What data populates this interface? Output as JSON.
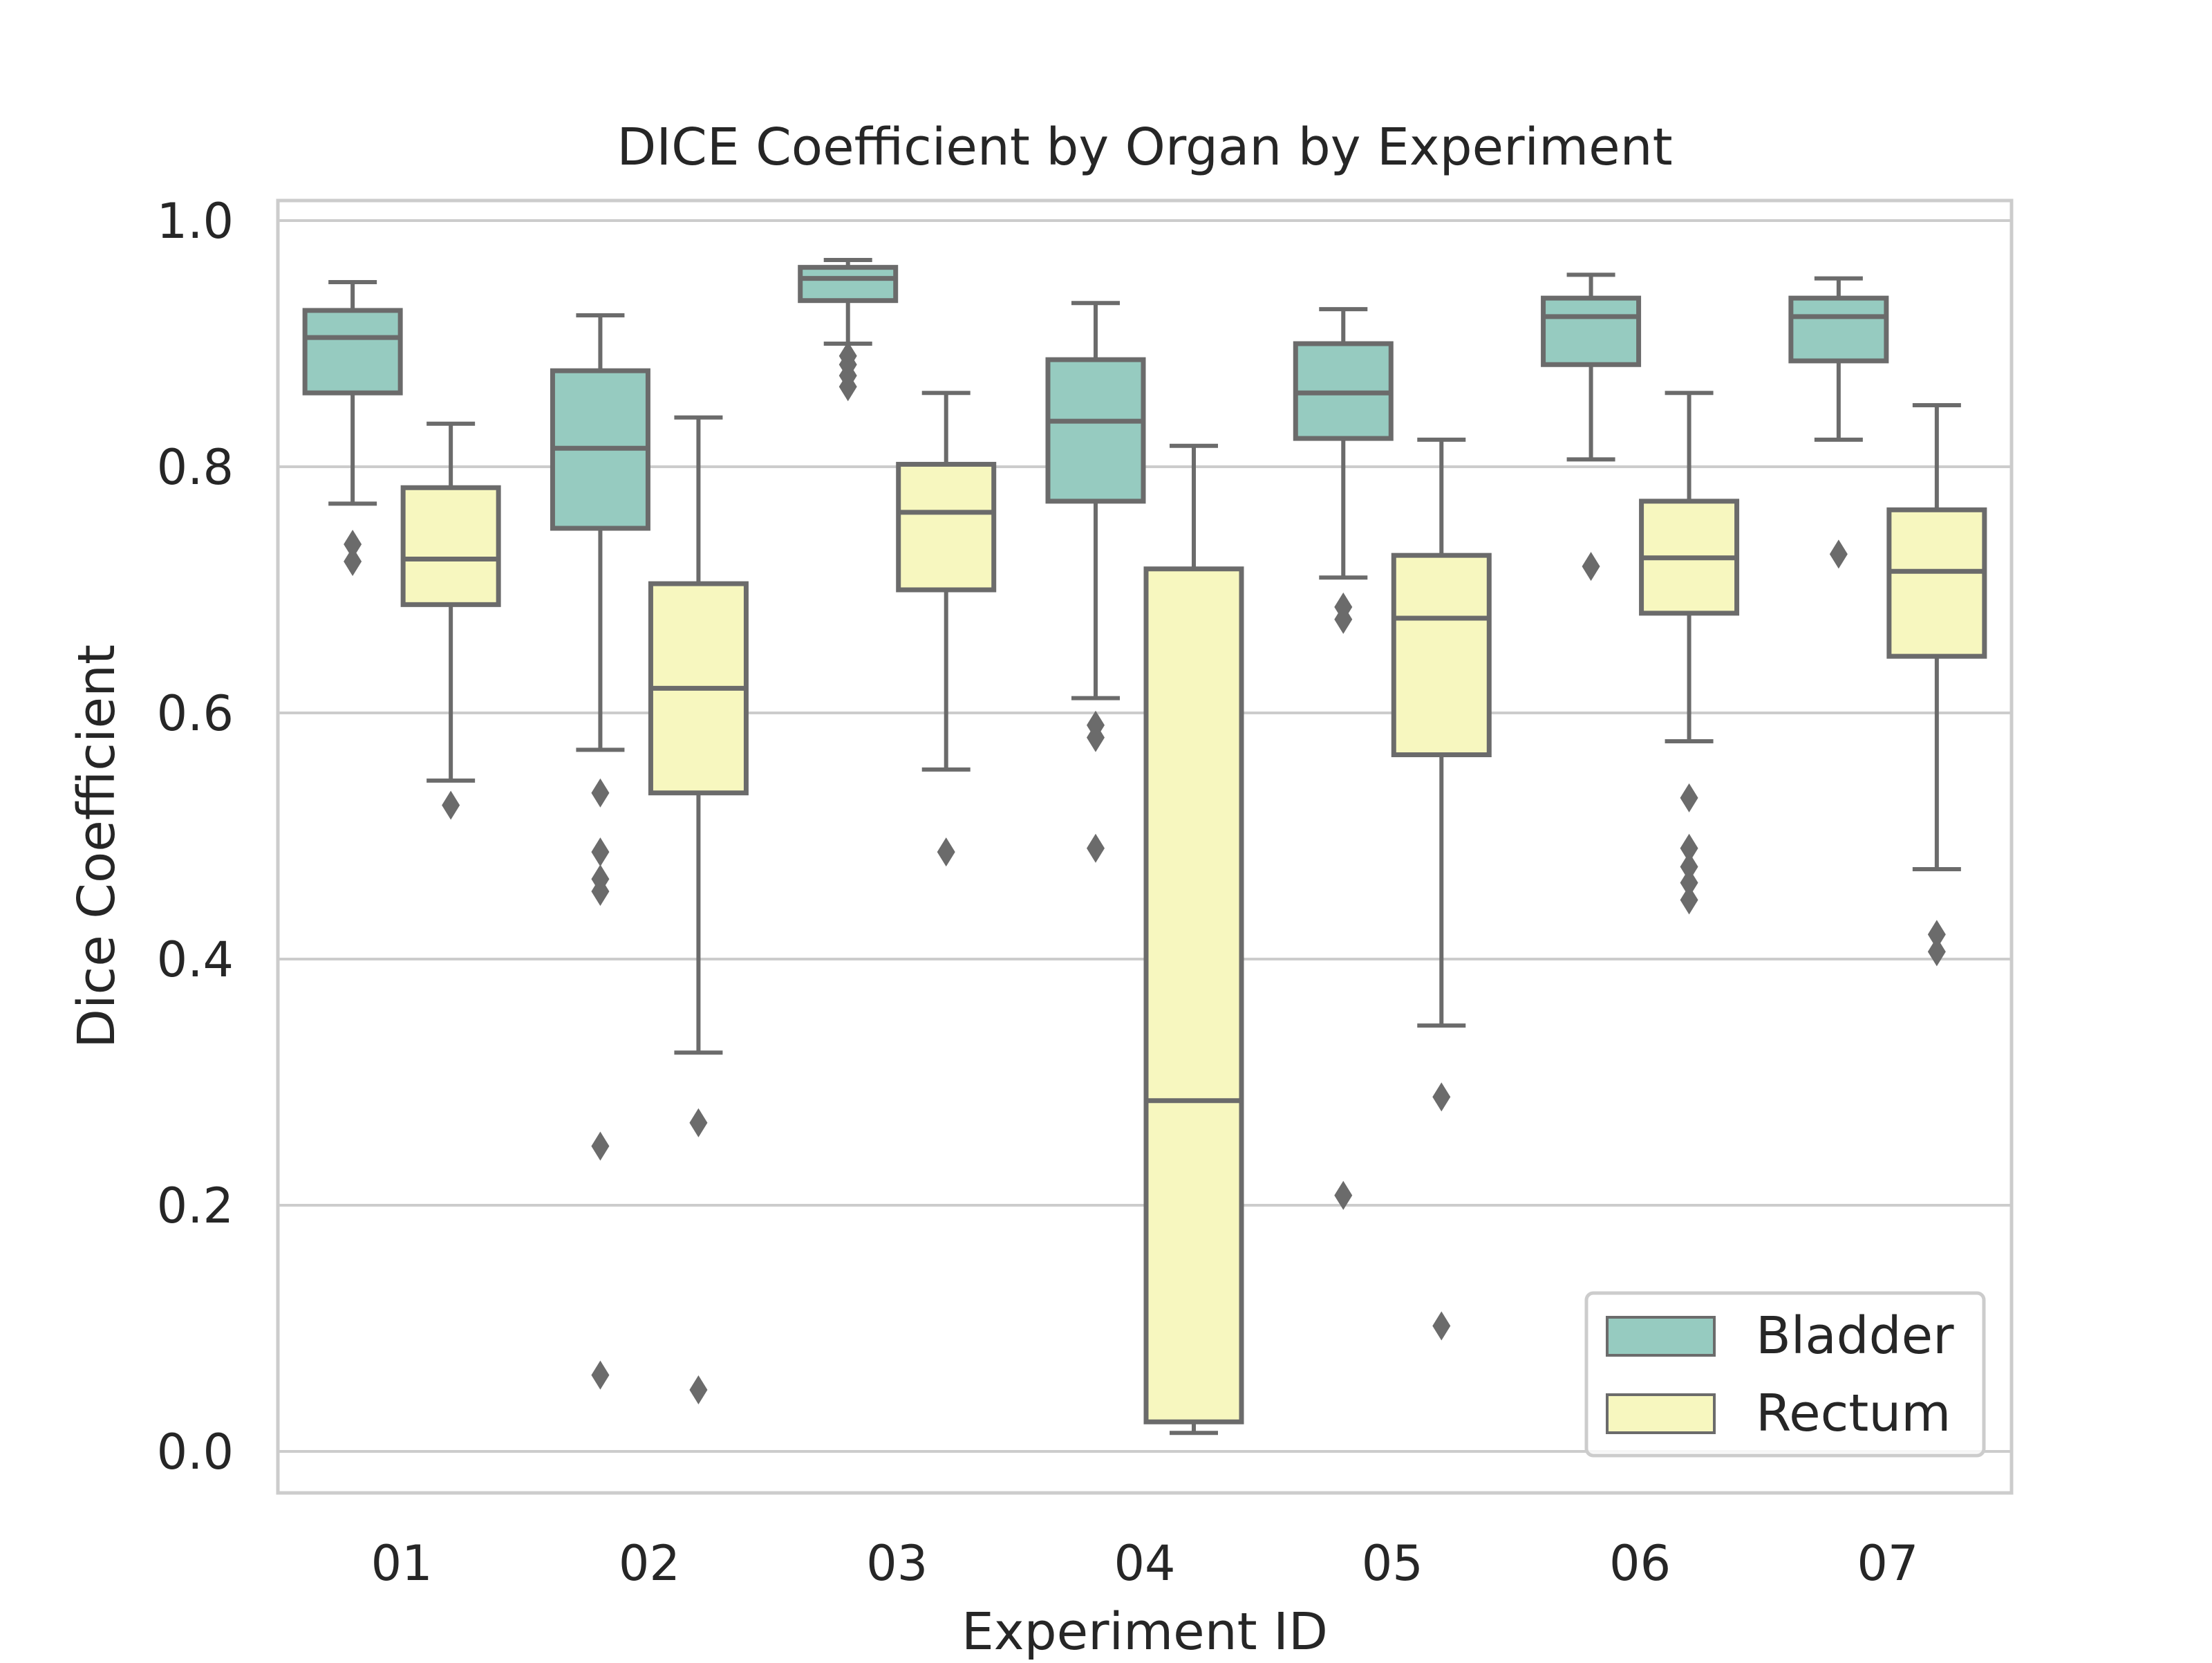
{
  "chart_data": {
    "type": "box",
    "title": "DICE Coefficient by Organ by Experiment",
    "xlabel": "Experiment ID",
    "ylabel": "Dice Coefficient",
    "ylim": [
      -0.035,
      1.02
    ],
    "yticks": [
      "0.0",
      "0.2",
      "0.4",
      "0.6",
      "0.8",
      "1.0"
    ],
    "categories": [
      "01",
      "02",
      "03",
      "04",
      "05",
      "06",
      "07"
    ],
    "grid": true,
    "legend_position": "lower-right",
    "series": [
      {
        "name": "Bladder",
        "color": "#96cbc0",
        "boxes": [
          {
            "whisker_low": 0.77,
            "q1": 0.86,
            "median": 0.905,
            "q3": 0.927,
            "whisker_high": 0.95,
            "outliers": [
              0.723,
              0.737
            ]
          },
          {
            "whisker_low": 0.57,
            "q1": 0.75,
            "median": 0.815,
            "q3": 0.878,
            "whisker_high": 0.923,
            "outliers": [
              0.535,
              0.487,
              0.465,
              0.455,
              0.248,
              0.062
            ]
          },
          {
            "whisker_low": 0.9,
            "q1": 0.935,
            "median": 0.953,
            "q3": 0.962,
            "whisker_high": 0.968,
            "outliers": [
              0.89,
              0.883,
              0.874,
              0.865
            ]
          },
          {
            "whisker_low": 0.612,
            "q1": 0.772,
            "median": 0.837,
            "q3": 0.887,
            "whisker_high": 0.933,
            "outliers": [
              0.59,
              0.58,
              0.49
            ]
          },
          {
            "whisker_low": 0.71,
            "q1": 0.823,
            "median": 0.86,
            "q3": 0.9,
            "whisker_high": 0.928,
            "outliers": [
              0.686,
              0.676,
              0.208
            ]
          },
          {
            "whisker_low": 0.806,
            "q1": 0.883,
            "median": 0.922,
            "q3": 0.937,
            "whisker_high": 0.956,
            "outliers": [
              0.719
            ]
          },
          {
            "whisker_low": 0.822,
            "q1": 0.886,
            "median": 0.922,
            "q3": 0.937,
            "whisker_high": 0.953,
            "outliers": [
              0.729
            ]
          }
        ]
      },
      {
        "name": "Rectum",
        "color": "#f7f7bf",
        "boxes": [
          {
            "whisker_low": 0.545,
            "q1": 0.688,
            "median": 0.725,
            "q3": 0.783,
            "whisker_high": 0.835,
            "outliers": [
              0.525
            ]
          },
          {
            "whisker_low": 0.324,
            "q1": 0.535,
            "median": 0.62,
            "q3": 0.705,
            "whisker_high": 0.84,
            "outliers": [
              0.267,
              0.05
            ]
          },
          {
            "whisker_low": 0.554,
            "q1": 0.7,
            "median": 0.763,
            "q3": 0.802,
            "whisker_high": 0.86,
            "outliers": [
              0.487
            ]
          },
          {
            "whisker_low": 0.015,
            "q1": 0.024,
            "median": 0.285,
            "q3": 0.717,
            "whisker_high": 0.817,
            "outliers": []
          },
          {
            "whisker_low": 0.346,
            "q1": 0.566,
            "median": 0.677,
            "q3": 0.728,
            "whisker_high": 0.822,
            "outliers": [
              0.288,
              0.102
            ]
          },
          {
            "whisker_low": 0.577,
            "q1": 0.681,
            "median": 0.726,
            "q3": 0.772,
            "whisker_high": 0.86,
            "outliers": [
              0.531,
              0.49,
              0.475,
              0.462,
              0.448
            ]
          },
          {
            "whisker_low": 0.473,
            "q1": 0.646,
            "median": 0.715,
            "q3": 0.765,
            "whisker_high": 0.85,
            "outliers": [
              0.42,
              0.406
            ]
          }
        ]
      }
    ]
  }
}
